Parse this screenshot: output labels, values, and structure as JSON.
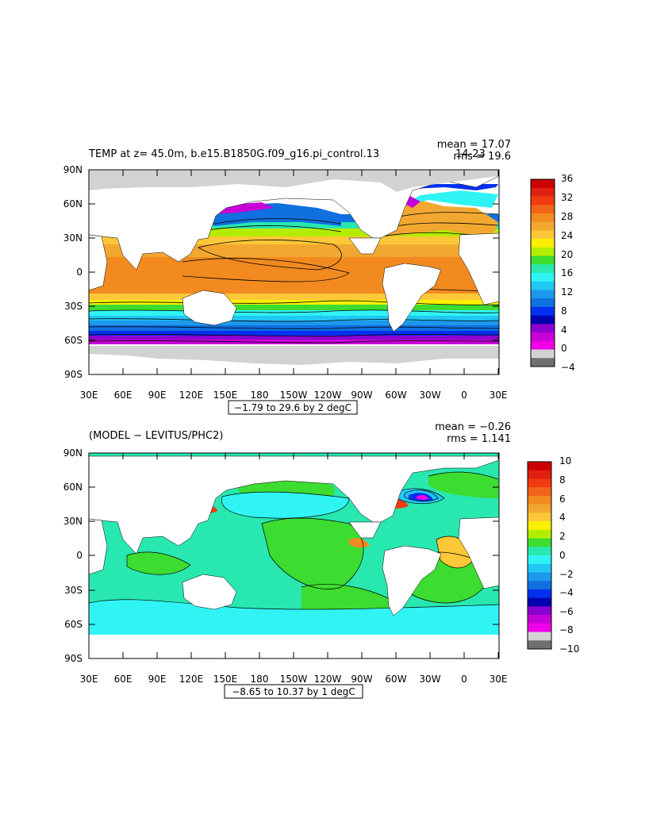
{
  "panel1": {
    "title": "TEMP at z=  45.0m, b.e15.B1850G.f09_g16.pi_control.13 ",
    "title_suffix": "14-23",
    "mean_text": "mean = 17.07",
    "rms_text": "rms = 19.6",
    "range_text": "−1.79 to 29.6 by 2 degC",
    "colorbar": {
      "labels": [
        "36",
        "32",
        "28",
        "24",
        "20",
        "16",
        "12",
        "8",
        "4",
        "0",
        "−4"
      ],
      "colors": [
        "#cc0000",
        "#e02010",
        "#f23a10",
        "#f26418",
        "#f28a20",
        "#f2a830",
        "#fcc838",
        "#fcf000",
        "#b4ec00",
        "#3cdc30",
        "#28e8b0",
        "#30f4f4",
        "#20c8f4",
        "#1c98ec",
        "#1070e0",
        "#0030f0",
        "#0000b0",
        "#8c00d0",
        "#c800d8",
        "#f000e8",
        "#d2d2d2",
        "#707070"
      ]
    }
  },
  "panel2": {
    "title": "(MODEL − LEVITUS/PHC2)",
    "mean_text": "mean = −0.26",
    "rms_text": "rms = 1.141",
    "range_text": "−8.65 to 10.37 by 1 degC",
    "colorbar": {
      "labels": [
        "10",
        "8",
        "6",
        "4",
        "2",
        "0",
        "−2",
        "−4",
        "−6",
        "−8",
        "−10"
      ],
      "colors": [
        "#cc0000",
        "#e02010",
        "#f23a10",
        "#f26418",
        "#f28a20",
        "#f2a830",
        "#fcc838",
        "#fcf000",
        "#b4ec00",
        "#3cdc30",
        "#28e8b0",
        "#30f4f4",
        "#20c8f4",
        "#1c98ec",
        "#1070e0",
        "#0030f0",
        "#0000b0",
        "#8c00d0",
        "#c800d8",
        "#f000e8",
        "#d2d2d2",
        "#707070"
      ]
    }
  },
  "axes": {
    "lat_labels": [
      "90N",
      "60N",
      "30N",
      "0",
      "30S",
      "60S",
      "90S"
    ],
    "lon_labels": [
      "30E",
      "60E",
      "90E",
      "120E",
      "150E",
      "180",
      "150W",
      "120W",
      "90W",
      "60W",
      "30W",
      "0",
      "30E"
    ]
  },
  "colors": {
    "land": "#ffffff",
    "sea_ice": "#d2d2d2"
  }
}
